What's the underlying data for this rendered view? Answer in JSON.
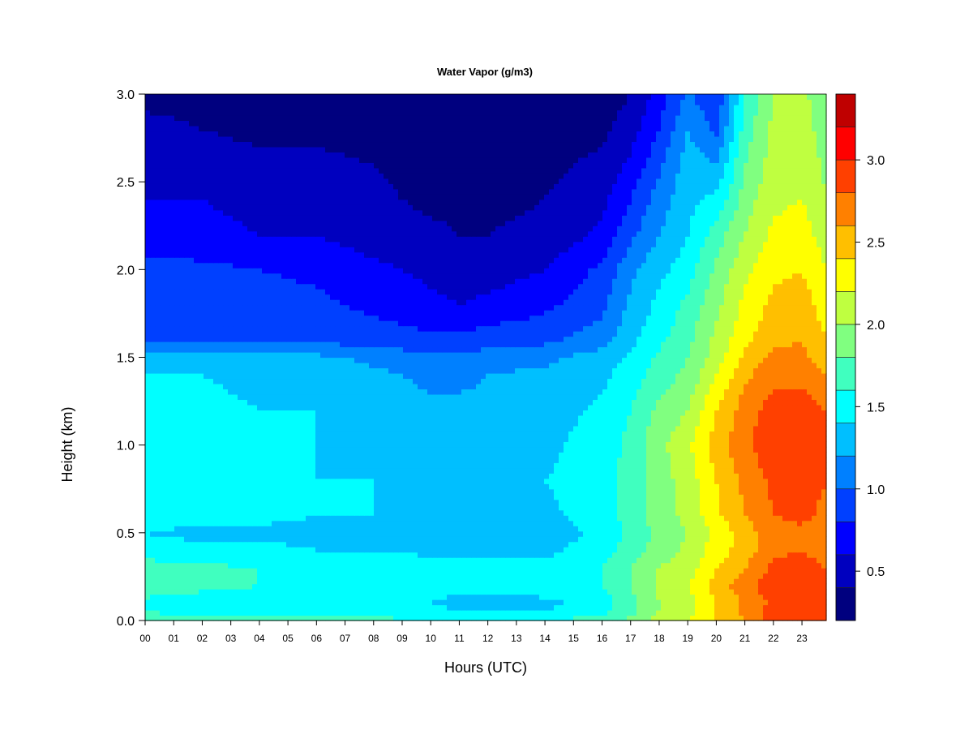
{
  "chart_data": {
    "type": "heatmap",
    "subtype": "filled-contour",
    "title": "Water Vapor (g/m3)",
    "xlabel": "Hours (UTC)",
    "ylabel": "Height (km)",
    "x_tick_labels": [
      "00",
      "01",
      "02",
      "03",
      "04",
      "05",
      "06",
      "07",
      "08",
      "09",
      "10",
      "11",
      "12",
      "13",
      "14",
      "15",
      "16",
      "17",
      "18",
      "19",
      "20",
      "21",
      "22",
      "23"
    ],
    "y_tick_labels": [
      "0.0",
      "0.5",
      "1.0",
      "1.5",
      "2.0",
      "2.5",
      "3.0"
    ],
    "y_ticks": [
      0.0,
      0.5,
      1.0,
      1.5,
      2.0,
      2.5,
      3.0
    ],
    "xlim": [
      0,
      23.85
    ],
    "ylim": [
      0,
      3.0
    ],
    "z_units": "g/m3",
    "colorbar": {
      "levels": [
        0.2,
        0.4,
        0.6,
        0.8,
        1.0,
        1.2,
        1.4,
        1.6,
        1.8,
        2.0,
        2.2,
        2.4,
        2.6,
        2.8,
        3.0,
        3.2,
        3.4
      ],
      "colors": [
        "#00007F",
        "#0000BF",
        "#0000FF",
        "#0040FF",
        "#0080FF",
        "#00BFFF",
        "#00FFFF",
        "#40FFBF",
        "#80FF80",
        "#BFFF40",
        "#FFFF00",
        "#FFBF00",
        "#FF8000",
        "#FF4000",
        "#FF0000",
        "#BF0000",
        "#7F0000"
      ],
      "tick_labels": [
        "0.5",
        "1.0",
        "1.5",
        "2.0",
        "2.5",
        "3.0"
      ],
      "ticks": [
        0.5,
        1.0,
        1.5,
        2.0,
        2.5,
        3.0
      ]
    },
    "heights_km": [
      0.0,
      0.05,
      0.1,
      0.2,
      0.3,
      0.4,
      0.5,
      0.6,
      0.8,
      1.0,
      1.2,
      1.4,
      1.5,
      1.6,
      1.8,
      2.0,
      2.2,
      2.4,
      2.6,
      2.8,
      3.0
    ],
    "hours_utc": [
      0,
      2,
      4,
      6,
      8,
      10,
      11,
      12,
      14,
      16,
      17,
      18,
      19,
      20,
      21,
      22,
      23,
      23.85
    ],
    "z_values": [
      [
        1.7,
        1.7,
        1.7,
        1.65,
        1.65,
        1.65,
        1.6,
        1.6,
        1.6,
        1.7,
        1.85,
        2.1,
        2.2,
        2.4,
        2.6,
        2.9,
        2.9,
        2.8
      ],
      [
        1.6,
        1.55,
        1.55,
        1.55,
        1.5,
        1.45,
        1.45,
        1.4,
        1.4,
        1.55,
        1.75,
        2.0,
        2.15,
        2.4,
        2.65,
        2.9,
        2.9,
        2.8
      ],
      [
        1.55,
        1.5,
        1.45,
        1.45,
        1.45,
        1.4,
        1.3,
        1.3,
        1.35,
        1.5,
        1.75,
        2.0,
        2.1,
        2.4,
        2.65,
        2.85,
        2.9,
        2.8
      ],
      [
        1.7,
        1.65,
        1.6,
        1.6,
        1.55,
        1.55,
        1.5,
        1.5,
        1.5,
        1.6,
        1.8,
        2.05,
        2.2,
        2.5,
        2.7,
        2.95,
        3.0,
        2.9
      ],
      [
        1.7,
        1.65,
        1.6,
        1.55,
        1.55,
        1.5,
        1.5,
        1.45,
        1.45,
        1.6,
        1.8,
        2.0,
        2.1,
        2.4,
        2.6,
        2.85,
        2.9,
        2.8
      ],
      [
        1.5,
        1.45,
        1.45,
        1.4,
        1.4,
        1.35,
        1.35,
        1.35,
        1.35,
        1.5,
        1.7,
        1.9,
        2.05,
        2.3,
        2.5,
        2.75,
        2.8,
        2.7
      ],
      [
        1.4,
        1.35,
        1.35,
        1.35,
        1.3,
        1.3,
        1.25,
        1.3,
        1.3,
        1.45,
        1.65,
        1.85,
        2.0,
        2.25,
        2.5,
        2.7,
        2.75,
        2.7
      ],
      [
        1.5,
        1.45,
        1.45,
        1.4,
        1.4,
        1.35,
        1.35,
        1.35,
        1.35,
        1.5,
        1.7,
        1.9,
        2.05,
        2.35,
        2.6,
        2.8,
        2.85,
        2.75
      ],
      [
        1.5,
        1.45,
        1.45,
        1.4,
        1.4,
        1.35,
        1.35,
        1.35,
        1.4,
        1.5,
        1.7,
        1.9,
        2.1,
        2.4,
        2.65,
        2.85,
        2.9,
        2.8
      ],
      [
        1.45,
        1.45,
        1.4,
        1.4,
        1.35,
        1.3,
        1.3,
        1.3,
        1.35,
        1.5,
        1.65,
        1.95,
        2.15,
        2.5,
        2.75,
        2.95,
        2.95,
        2.85
      ],
      [
        1.45,
        1.45,
        1.4,
        1.4,
        1.3,
        1.25,
        1.25,
        1.25,
        1.3,
        1.45,
        1.6,
        1.85,
        2.0,
        2.4,
        2.7,
        2.9,
        2.9,
        2.8
      ],
      [
        1.4,
        1.4,
        1.35,
        1.35,
        1.25,
        1.15,
        1.15,
        1.2,
        1.25,
        1.35,
        1.5,
        1.7,
        1.85,
        2.2,
        2.55,
        2.75,
        2.75,
        2.6
      ],
      [
        1.35,
        1.35,
        1.3,
        1.25,
        1.15,
        1.05,
        1.05,
        1.1,
        1.15,
        1.3,
        1.45,
        1.65,
        1.8,
        2.1,
        2.45,
        2.65,
        2.65,
        2.5
      ],
      [
        1.0,
        1.0,
        0.95,
        0.95,
        0.9,
        0.85,
        0.85,
        0.9,
        0.95,
        1.1,
        1.35,
        1.55,
        1.75,
        2.05,
        2.35,
        2.55,
        2.6,
        2.4
      ],
      [
        0.95,
        0.9,
        0.9,
        0.85,
        0.75,
        0.65,
        0.6,
        0.65,
        0.75,
        0.95,
        1.25,
        1.45,
        1.65,
        1.95,
        2.25,
        2.45,
        2.5,
        2.3
      ],
      [
        0.9,
        0.85,
        0.8,
        0.75,
        0.65,
        0.55,
        0.5,
        0.5,
        0.6,
        0.85,
        1.15,
        1.35,
        1.5,
        1.85,
        2.15,
        2.35,
        2.4,
        2.2
      ],
      [
        0.65,
        0.65,
        0.6,
        0.6,
        0.5,
        0.45,
        0.4,
        0.4,
        0.45,
        0.65,
        0.95,
        1.2,
        1.4,
        1.7,
        2.0,
        2.25,
        2.3,
        2.1
      ],
      [
        0.6,
        0.6,
        0.55,
        0.55,
        0.45,
        0.35,
        0.35,
        0.35,
        0.4,
        0.55,
        0.8,
        1.1,
        1.35,
        1.45,
        1.9,
        2.15,
        2.2,
        2.0
      ],
      [
        0.55,
        0.5,
        0.45,
        0.45,
        0.4,
        0.3,
        0.3,
        0.3,
        0.35,
        0.45,
        0.65,
        0.95,
        1.3,
        1.2,
        1.8,
        2.1,
        2.15,
        1.95
      ],
      [
        0.45,
        0.4,
        0.35,
        0.35,
        0.3,
        0.3,
        0.3,
        0.3,
        0.3,
        0.35,
        0.5,
        0.8,
        1.2,
        0.95,
        1.7,
        2.05,
        2.1,
        1.9
      ],
      [
        0.35,
        0.35,
        0.3,
        0.3,
        0.3,
        0.3,
        0.3,
        0.3,
        0.3,
        0.3,
        0.4,
        0.7,
        1.05,
        0.8,
        1.6,
        2.0,
        2.05,
        1.85
      ]
    ]
  }
}
